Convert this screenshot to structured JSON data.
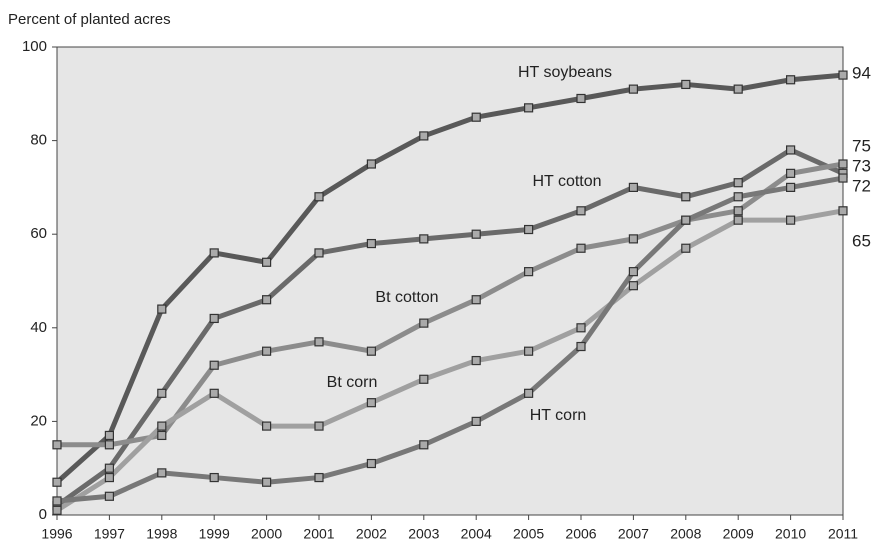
{
  "chart_data": {
    "type": "line",
    "y_axis_label": "Percent of planted acres",
    "x": [
      1996,
      1997,
      1998,
      1999,
      2000,
      2001,
      2002,
      2003,
      2004,
      2005,
      2006,
      2007,
      2008,
      2009,
      2010,
      2011
    ],
    "xlim": [
      1996,
      2011
    ],
    "ylim": [
      0,
      100
    ],
    "yticks": [
      0,
      20,
      40,
      60,
      80,
      100
    ],
    "series": [
      {
        "name": "HT soybeans",
        "color": "#595959",
        "values": [
          7,
          17,
          44,
          56,
          54,
          68,
          75,
          81,
          85,
          87,
          89,
          91,
          92,
          91,
          93,
          94
        ]
      },
      {
        "name": "HT cotton",
        "color": "#6a6a6a",
        "values": [
          2,
          10,
          26,
          42,
          46,
          56,
          58,
          59,
          60,
          61,
          65,
          70,
          68,
          71,
          78,
          73
        ]
      },
      {
        "name": "Bt cotton",
        "color": "#8c8c8c",
        "values": [
          15,
          15,
          17,
          32,
          35,
          37,
          35,
          41,
          46,
          52,
          57,
          59,
          63,
          65,
          73,
          75
        ]
      },
      {
        "name": "Bt corn",
        "color": "#a0a0a0",
        "values": [
          1,
          8,
          19,
          26,
          19,
          19,
          24,
          29,
          33,
          35,
          40,
          49,
          57,
          63,
          63,
          65
        ]
      },
      {
        "name": "HT corn",
        "color": "#787878",
        "values": [
          3,
          4,
          9,
          8,
          7,
          8,
          11,
          15,
          20,
          26,
          36,
          52,
          63,
          68,
          70,
          72
        ]
      }
    ]
  }
}
